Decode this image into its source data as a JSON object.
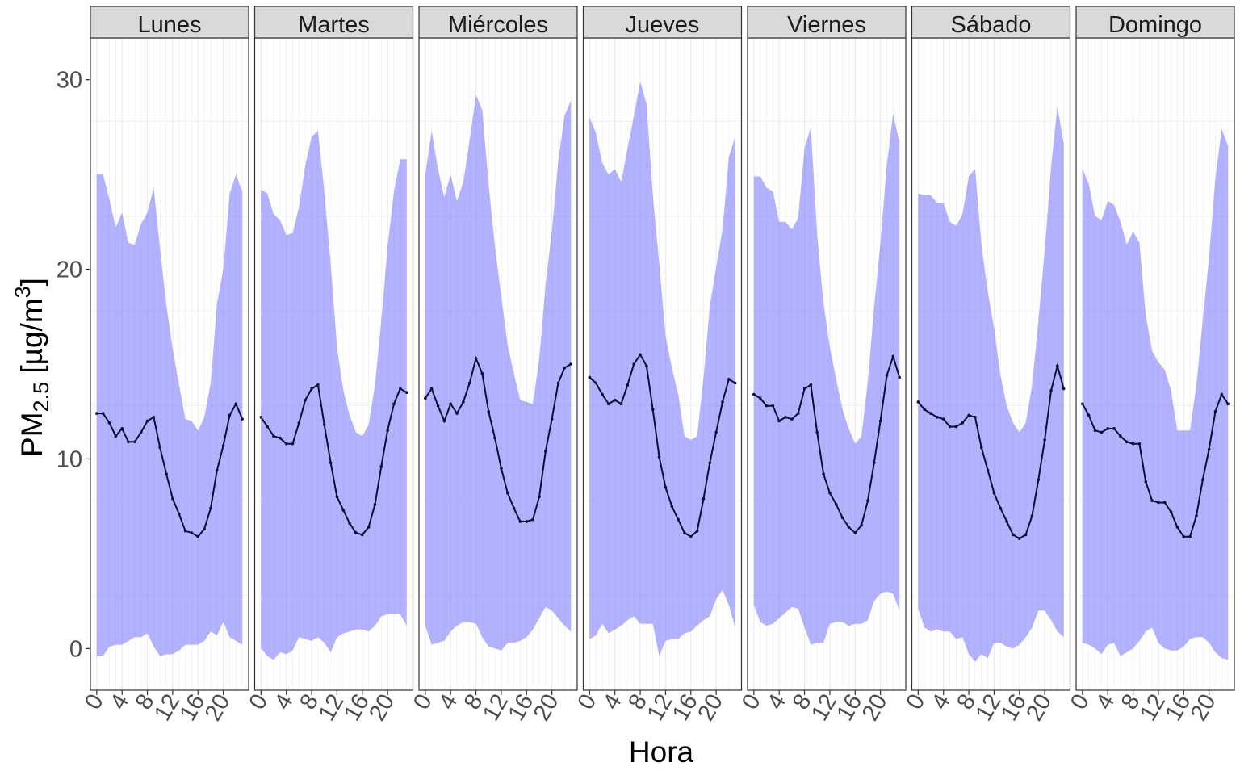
{
  "chart_data": {
    "type": "line",
    "xlabel": "Hora",
    "ylabel": {
      "base": "PM",
      "sub": "2.5",
      "unit_open": " [µg/m",
      "unit_sup": "3",
      "unit_close": "]"
    },
    "xlim": [
      -1,
      24
    ],
    "ylim": [
      -2.2,
      32.2
    ],
    "x_ticks": [
      0,
      4,
      8,
      12,
      16,
      20
    ],
    "y_ticks": [
      0,
      10,
      20,
      30
    ],
    "grid": true,
    "colors": {
      "band": "#b3b3ff",
      "line": "#0d0d33",
      "strip": "#d9d9d9",
      "grid": "#ebebeb",
      "border": "#333333"
    },
    "panels": [
      {
        "name": "Lunes",
        "mean": [
          12.4,
          12.4,
          11.9,
          11.2,
          11.6,
          10.9,
          10.9,
          11.4,
          12.0,
          12.2,
          10.6,
          9.2,
          7.9,
          7.1,
          6.2,
          6.1,
          5.9,
          6.3,
          7.4,
          9.4,
          10.7,
          12.3,
          12.9,
          12.1
        ],
        "upper": [
          25.0,
          25.0,
          23.7,
          22.2,
          23.0,
          21.4,
          21.3,
          22.4,
          23.0,
          24.3,
          21.1,
          18.1,
          15.8,
          13.9,
          12.1,
          12.0,
          11.5,
          12.2,
          14.0,
          18.2,
          20.0,
          24.0,
          25.0,
          24.1
        ],
        "lower": [
          -0.4,
          -0.4,
          0.1,
          0.2,
          0.2,
          0.4,
          0.6,
          0.6,
          0.8,
          0.1,
          -0.4,
          -0.3,
          -0.3,
          -0.1,
          0.2,
          0.2,
          0.2,
          0.4,
          0.9,
          0.7,
          1.4,
          0.6,
          0.4,
          0.2
        ]
      },
      {
        "name": "Martes",
        "mean": [
          12.2,
          11.7,
          11.2,
          11.1,
          10.8,
          10.8,
          11.9,
          13.1,
          13.7,
          13.9,
          11.8,
          9.8,
          8.0,
          7.3,
          6.6,
          6.1,
          6.0,
          6.4,
          7.6,
          9.6,
          11.5,
          12.9,
          13.7,
          13.5
        ],
        "upper": [
          24.2,
          24.0,
          22.9,
          22.6,
          21.8,
          21.9,
          23.3,
          25.5,
          27.0,
          27.3,
          24.1,
          20.3,
          15.9,
          13.6,
          12.3,
          11.4,
          11.2,
          11.8,
          13.9,
          17.3,
          21.2,
          24.1,
          25.8,
          25.8
        ],
        "lower": [
          0.0,
          -0.4,
          -0.6,
          -0.2,
          -0.3,
          -0.1,
          0.6,
          0.5,
          0.4,
          0.6,
          0.3,
          -0.2,
          0.6,
          0.8,
          0.9,
          1.0,
          1.0,
          0.9,
          1.2,
          1.7,
          1.8,
          1.8,
          1.8,
          1.2
        ]
      },
      {
        "name": "Miércoles",
        "mean": [
          13.2,
          13.7,
          12.8,
          12.0,
          12.9,
          12.4,
          13.0,
          14.0,
          15.3,
          14.5,
          12.5,
          11.1,
          9.5,
          8.2,
          7.4,
          6.7,
          6.7,
          6.8,
          8.0,
          10.4,
          12.1,
          14.0,
          14.8,
          15.0
        ],
        "upper": [
          25.0,
          27.3,
          25.3,
          23.8,
          25.0,
          23.6,
          24.6,
          26.8,
          29.2,
          28.4,
          24.5,
          21.2,
          18.6,
          16.0,
          14.5,
          13.1,
          13.0,
          12.9,
          15.3,
          19.2,
          22.0,
          25.7,
          28.1,
          28.9
        ],
        "lower": [
          1.2,
          0.2,
          0.3,
          0.4,
          0.9,
          1.2,
          1.4,
          1.4,
          1.3,
          0.6,
          0.1,
          0.0,
          -0.1,
          0.3,
          0.3,
          0.4,
          0.6,
          1.0,
          1.6,
          2.2,
          2.0,
          1.6,
          1.2,
          0.9
        ]
      },
      {
        "name": "Jueves",
        "mean": [
          14.3,
          14.0,
          13.4,
          12.9,
          13.1,
          12.9,
          13.9,
          15.0,
          15.5,
          14.9,
          12.6,
          10.1,
          8.5,
          7.5,
          6.8,
          6.1,
          5.9,
          6.2,
          7.9,
          9.8,
          11.4,
          13.0,
          14.2,
          14.0
        ],
        "upper": [
          28.0,
          27.2,
          25.6,
          25.0,
          25.3,
          24.6,
          26.4,
          28.1,
          29.9,
          28.7,
          23.9,
          20.3,
          16.5,
          14.8,
          13.4,
          11.2,
          11.0,
          11.2,
          14.3,
          18.1,
          20.1,
          22.1,
          25.9,
          27.0
        ],
        "lower": [
          0.5,
          0.7,
          1.3,
          0.8,
          1.0,
          1.2,
          1.5,
          1.7,
          1.3,
          1.3,
          1.3,
          -0.4,
          0.4,
          0.5,
          0.5,
          0.8,
          0.9,
          1.2,
          1.5,
          1.7,
          2.6,
          3.1,
          2.3,
          1.1
        ]
      },
      {
        "name": "Viernes",
        "mean": [
          13.4,
          13.2,
          12.8,
          12.8,
          12.0,
          12.2,
          12.1,
          12.4,
          13.7,
          13.9,
          11.4,
          9.2,
          8.2,
          7.6,
          6.9,
          6.4,
          6.1,
          6.5,
          7.8,
          9.8,
          12.0,
          14.4,
          15.4,
          14.3
        ],
        "upper": [
          24.9,
          24.9,
          24.3,
          24.1,
          22.5,
          22.5,
          22.1,
          22.7,
          26.4,
          27.5,
          21.8,
          18.2,
          15.9,
          14.2,
          12.6,
          11.6,
          10.8,
          11.2,
          14.1,
          18.0,
          21.4,
          25.5,
          28.2,
          26.7
        ],
        "lower": [
          2.3,
          1.4,
          1.2,
          1.3,
          1.6,
          1.9,
          2.2,
          2.1,
          1.1,
          0.2,
          0.3,
          0.3,
          1.3,
          1.4,
          1.4,
          1.2,
          1.3,
          1.3,
          1.5,
          2.5,
          2.9,
          3.0,
          2.9,
          2.0
        ]
      },
      {
        "name": "Sábado",
        "mean": [
          13.0,
          12.6,
          12.4,
          12.2,
          12.1,
          11.7,
          11.7,
          11.9,
          12.3,
          12.2,
          10.6,
          9.4,
          8.2,
          7.4,
          6.7,
          6.0,
          5.8,
          6.0,
          7.0,
          8.9,
          11.0,
          13.6,
          14.9,
          13.7
        ],
        "upper": [
          24.0,
          23.9,
          23.9,
          23.5,
          23.5,
          22.5,
          22.3,
          22.9,
          24.9,
          25.3,
          21.3,
          18.8,
          16.9,
          14.4,
          12.8,
          11.9,
          11.4,
          11.9,
          13.9,
          17.3,
          21.0,
          25.4,
          28.6,
          26.6
        ],
        "lower": [
          2.1,
          1.1,
          0.9,
          1.0,
          0.9,
          0.9,
          0.5,
          0.6,
          -0.3,
          -0.7,
          -0.3,
          -0.5,
          0.3,
          0.3,
          0.1,
          0.0,
          0.2,
          0.6,
          1.1,
          2.0,
          2.0,
          1.5,
          0.9,
          0.6
        ]
      },
      {
        "name": "Domingo",
        "mean": [
          12.9,
          12.3,
          11.5,
          11.4,
          11.6,
          11.6,
          11.2,
          10.9,
          10.8,
          10.8,
          8.8,
          7.8,
          7.7,
          7.7,
          7.2,
          6.4,
          5.9,
          5.9,
          7.0,
          8.9,
          10.5,
          12.5,
          13.4,
          12.9
        ],
        "upper": [
          25.3,
          24.5,
          22.8,
          22.6,
          23.6,
          23.4,
          22.5,
          21.3,
          22.0,
          21.4,
          17.6,
          15.7,
          15.1,
          14.7,
          13.6,
          11.5,
          11.5,
          11.5,
          13.9,
          17.3,
          20.6,
          24.8,
          27.4,
          26.5
        ],
        "lower": [
          0.3,
          0.2,
          0.0,
          -0.3,
          0.2,
          0.3,
          -0.4,
          -0.2,
          0.0,
          0.4,
          0.9,
          1.1,
          0.3,
          0.0,
          -0.1,
          -0.1,
          0.1,
          0.5,
          0.6,
          0.6,
          0.3,
          -0.2,
          -0.5,
          -0.6
        ]
      }
    ]
  }
}
